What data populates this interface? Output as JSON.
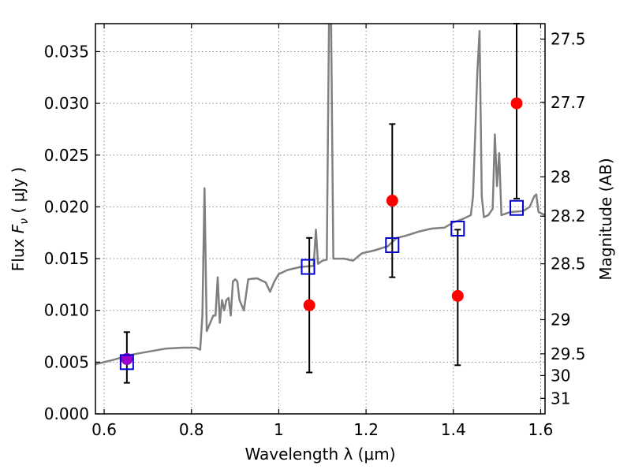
{
  "chart_data": {
    "type": "scatter",
    "xlabel": "Wavelength  λ (μm)",
    "ylabel": "Flux  F_ν ( μJy )",
    "ylabel_parts": {
      "pre": "Flux  ",
      "var": "F",
      "sub": "ν",
      "post": "  ( μJy )"
    },
    "y2label": "Magnitude (AB)",
    "xlim": [
      0.58,
      1.61
    ],
    "ylim": [
      0.0,
      0.0377
    ],
    "grid": true,
    "x_ticks": [
      {
        "value": 0.6,
        "label": "0.6"
      },
      {
        "value": 0.8,
        "label": "0.8"
      },
      {
        "value": 1.0,
        "label": "1"
      },
      {
        "value": 1.2,
        "label": "1.2"
      },
      {
        "value": 1.4,
        "label": "1.4"
      },
      {
        "value": 1.6,
        "label": "1.6"
      }
    ],
    "y_ticks": [
      {
        "value": 0.0,
        "label": "0.000"
      },
      {
        "value": 0.005,
        "label": "0.005"
      },
      {
        "value": 0.01,
        "label": "0.010"
      },
      {
        "value": 0.015,
        "label": "0.015"
      },
      {
        "value": 0.02,
        "label": "0.020"
      },
      {
        "value": 0.025,
        "label": "0.025"
      },
      {
        "value": 0.03,
        "label": "0.030"
      },
      {
        "value": 0.035,
        "label": "0.035"
      }
    ],
    "y2_ticks": [
      {
        "flux": 0.0362,
        "label": "27.5"
      },
      {
        "flux": 0.0301,
        "label": "27.7"
      },
      {
        "flux": 0.0229,
        "label": "28"
      },
      {
        "flux": 0.0191,
        "label": "28.2"
      },
      {
        "flux": 0.0145,
        "label": "28.5"
      },
      {
        "flux": 0.0091,
        "label": "29"
      },
      {
        "flux": 0.0058,
        "label": "29.5"
      },
      {
        "flux": 0.0037,
        "label": "30"
      },
      {
        "flux": 0.0015,
        "label": "31"
      }
    ],
    "series": [
      {
        "kind": "model_spectrum",
        "color": "#808080",
        "points": [
          [
            0.58,
            0.0048
          ],
          [
            0.62,
            0.0052
          ],
          [
            0.66,
            0.0057
          ],
          [
            0.7,
            0.006
          ],
          [
            0.74,
            0.0063
          ],
          [
            0.78,
            0.0064
          ],
          [
            0.81,
            0.0064
          ],
          [
            0.82,
            0.0062
          ],
          [
            0.825,
            0.0095
          ],
          [
            0.83,
            0.0218
          ],
          [
            0.835,
            0.008
          ],
          [
            0.845,
            0.009
          ],
          [
            0.85,
            0.0095
          ],
          [
            0.855,
            0.0095
          ],
          [
            0.86,
            0.0132
          ],
          [
            0.865,
            0.0088
          ],
          [
            0.87,
            0.011
          ],
          [
            0.875,
            0.01
          ],
          [
            0.88,
            0.011
          ],
          [
            0.885,
            0.0112
          ],
          [
            0.89,
            0.0095
          ],
          [
            0.895,
            0.0128
          ],
          [
            0.9,
            0.013
          ],
          [
            0.905,
            0.0128
          ],
          [
            0.91,
            0.011
          ],
          [
            0.92,
            0.01
          ],
          [
            0.93,
            0.013
          ],
          [
            0.95,
            0.0131
          ],
          [
            0.97,
            0.0127
          ],
          [
            0.98,
            0.0118
          ],
          [
            0.99,
            0.0128
          ],
          [
            1.0,
            0.0135
          ],
          [
            1.02,
            0.0139
          ],
          [
            1.05,
            0.0142
          ],
          [
            1.08,
            0.0143
          ],
          [
            1.085,
            0.0178
          ],
          [
            1.09,
            0.0145
          ],
          [
            1.1,
            0.0148
          ],
          [
            1.11,
            0.0149
          ],
          [
            1.115,
            0.0377
          ],
          [
            1.12,
            0.0377
          ],
          [
            1.125,
            0.015
          ],
          [
            1.15,
            0.015
          ],
          [
            1.17,
            0.0148
          ],
          [
            1.19,
            0.0155
          ],
          [
            1.22,
            0.0158
          ],
          [
            1.25,
            0.0162
          ],
          [
            1.27,
            0.017
          ],
          [
            1.29,
            0.0172
          ],
          [
            1.32,
            0.0176
          ],
          [
            1.35,
            0.0179
          ],
          [
            1.38,
            0.018
          ],
          [
            1.4,
            0.0185
          ],
          [
            1.42,
            0.0188
          ],
          [
            1.44,
            0.0192
          ],
          [
            1.445,
            0.021
          ],
          [
            1.455,
            0.033
          ],
          [
            1.46,
            0.037
          ],
          [
            1.465,
            0.021
          ],
          [
            1.47,
            0.019
          ],
          [
            1.48,
            0.0192
          ],
          [
            1.49,
            0.0198
          ],
          [
            1.495,
            0.027
          ],
          [
            1.5,
            0.022
          ],
          [
            1.505,
            0.0252
          ],
          [
            1.51,
            0.0192
          ],
          [
            1.53,
            0.0195
          ],
          [
            1.56,
            0.0196
          ],
          [
            1.575,
            0.02
          ],
          [
            1.585,
            0.021
          ],
          [
            1.59,
            0.0212
          ],
          [
            1.595,
            0.0195
          ],
          [
            1.61,
            0.0192
          ]
        ]
      },
      {
        "kind": "model_photometry",
        "marker": "open-square",
        "color": "#0000cc",
        "points": [
          [
            0.652,
            0.005
          ],
          [
            1.067,
            0.0142
          ],
          [
            1.26,
            0.0163
          ],
          [
            1.41,
            0.0179
          ],
          [
            1.545,
            0.0199
          ]
        ]
      },
      {
        "kind": "observed_photometry",
        "marker": "filled-circle",
        "color": "#ff0000",
        "points": [
          {
            "x": 0.652,
            "y": 0.0053,
            "yerr_low": 0.003,
            "yerr_high": 0.0079,
            "color": "#9900cc"
          },
          {
            "x": 1.07,
            "y": 0.0105,
            "yerr_low": 0.004,
            "yerr_high": 0.017
          },
          {
            "x": 1.26,
            "y": 0.0206,
            "yerr_low": 0.0132,
            "yerr_high": 0.028
          },
          {
            "x": 1.41,
            "y": 0.0114,
            "yerr_low": 0.0047,
            "yerr_high": 0.0178
          },
          {
            "x": 1.545,
            "y": 0.03,
            "yerr_low": 0.0208,
            "yerr_high": 0.0377
          }
        ]
      }
    ]
  }
}
